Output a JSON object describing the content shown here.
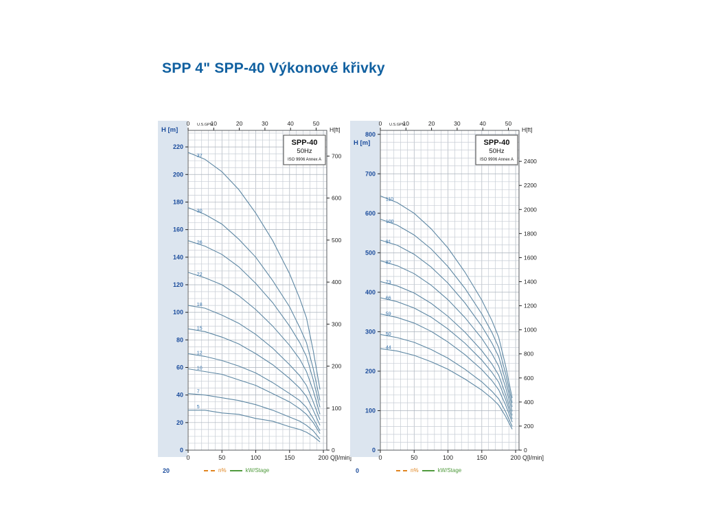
{
  "page": {
    "title": "SPP 4\" SPP-40 Výkonové křivky"
  },
  "colors": {
    "accent_title": "#1060a0",
    "axis_blue": "#1b4c9c",
    "curve": "#5d87a3",
    "curve_label": "#2f6ea8",
    "grid_minor": "#c6ccd4",
    "grid_major": "#a9b1bb",
    "border": "#55585e",
    "strip": "#dce5ef",
    "legend_orange": "#e0841f",
    "legend_green": "#4f9a3c",
    "ink": "#222222"
  },
  "legend": {
    "cut_left": "20",
    "cut_right": "0",
    "items": [
      {
        "label": "n%"
      },
      {
        "label": "kW/Stage"
      }
    ]
  },
  "chart_data": [
    {
      "type": "line",
      "title": "SPP-40",
      "subtitle": "50Hz",
      "standard": "ISO 9906 Annex A",
      "xlabel": "Q[l/min]",
      "ylabel_left": "H [m]",
      "ylabel_right": "H[ft]",
      "top_axis_label": "U.S.GPM",
      "top_ticks": [
        0,
        10,
        20,
        30,
        40,
        50
      ],
      "left_ticks": [
        0,
        20,
        40,
        60,
        80,
        100,
        120,
        140,
        160,
        180,
        200,
        220
      ],
      "right_ticks": [
        0,
        100,
        200,
        300,
        400,
        500,
        600,
        700
      ],
      "bottom_ticks": [
        0,
        50,
        100,
        150,
        200
      ],
      "xlim": [
        0,
        205
      ],
      "ylim": [
        0,
        232
      ],
      "minor_h_step": 5,
      "major_h_step": 20,
      "header_y": 26,
      "label_q": 13,
      "grid": true,
      "x": [
        0,
        25,
        50,
        75,
        100,
        125,
        150,
        165,
        175,
        185,
        195
      ],
      "series": [
        {
          "name": "37",
          "values": [
            216,
            211,
            202,
            189,
            172,
            152,
            128,
            110,
            96,
            72,
            44
          ]
        },
        {
          "name": "30",
          "values": [
            176,
            171,
            164,
            153,
            140,
            123,
            104,
            89,
            78,
            59,
            36
          ]
        },
        {
          "name": "26",
          "values": [
            152,
            148,
            142,
            133,
            121,
            107,
            90,
            78,
            68,
            51,
            31
          ]
        },
        {
          "name": "22",
          "values": [
            129,
            125,
            120,
            112,
            102,
            90,
            76,
            66,
            57,
            43,
            26
          ]
        },
        {
          "name": "18",
          "values": [
            105,
            103,
            98,
            92,
            84,
            74,
            62,
            54,
            47,
            35,
            22
          ]
        },
        {
          "name": "15",
          "values": [
            88,
            86,
            82,
            77,
            70,
            62,
            52,
            45,
            39,
            29,
            18
          ]
        },
        {
          "name": "12",
          "values": [
            70,
            68,
            65,
            61,
            56,
            49,
            41,
            36,
            31,
            23,
            14
          ]
        },
        {
          "name": "10",
          "values": [
            59,
            57,
            55,
            51,
            47,
            41,
            35,
            30,
            26,
            20,
            12
          ]
        },
        {
          "name": "7",
          "values": [
            41,
            40,
            38,
            36,
            33,
            29,
            24,
            21,
            18,
            14,
            8
          ]
        },
        {
          "name": "5",
          "values": [
            29,
            29,
            27,
            26,
            23,
            21,
            17,
            15,
            13,
            10,
            6
          ]
        }
      ]
    },
    {
      "type": "line",
      "title": "SPP-40",
      "subtitle": "50Hz",
      "standard": "ISO 9906 Annex A",
      "xlabel": "Q[l/min]",
      "ylabel_left": "H [m]",
      "ylabel_right": "H[ft]",
      "top_axis_label": "U.S.GPM",
      "top_ticks": [
        0,
        10,
        20,
        30,
        40,
        50
      ],
      "left_ticks": [
        0,
        100,
        200,
        300,
        400,
        500,
        600,
        700,
        800
      ],
      "right_ticks": [
        0,
        200,
        400,
        600,
        800,
        1000,
        1200,
        1400,
        1600,
        1800,
        2000,
        2200,
        2400
      ],
      "bottom_ticks": [
        0,
        50,
        100,
        150,
        200
      ],
      "xlim": [
        0,
        205
      ],
      "ylim": [
        0,
        810
      ],
      "minor_h_step": 20,
      "major_h_step": 100,
      "header_y": 45,
      "label_q": 8,
      "grid": true,
      "x": [
        0,
        25,
        50,
        75,
        100,
        125,
        150,
        165,
        175,
        185,
        195
      ],
      "series": [
        {
          "name": "110",
          "values": [
            644,
            627,
            600,
            561,
            512,
            451,
            380,
            328,
            286,
            215,
            132
          ]
        },
        {
          "name": "100",
          "values": [
            585,
            570,
            545,
            510,
            465,
            410,
            345,
            298,
            260,
            195,
            120
          ]
        },
        {
          "name": "91",
          "values": [
            532,
            519,
            496,
            464,
            423,
            373,
            314,
            271,
            237,
            177,
            109
          ]
        },
        {
          "name": "82",
          "values": [
            480,
            467,
            447,
            418,
            381,
            336,
            283,
            244,
            213,
            160,
            98
          ]
        },
        {
          "name": "73",
          "values": [
            427,
            416,
            398,
            372,
            339,
            299,
            252,
            218,
            190,
            142,
            88
          ]
        },
        {
          "name": "66",
          "values": [
            386,
            376,
            360,
            337,
            307,
            271,
            228,
            197,
            172,
            129,
            79
          ]
        },
        {
          "name": "59",
          "values": [
            345,
            336,
            322,
            301,
            274,
            242,
            204,
            176,
            153,
            115,
            71
          ]
        },
        {
          "name": "50",
          "values": [
            293,
            285,
            273,
            255,
            233,
            205,
            173,
            149,
            130,
            98,
            60
          ]
        },
        {
          "name": "44",
          "values": [
            257,
            251,
            240,
            224,
            205,
            180,
            152,
            131,
            114,
            86,
            53
          ]
        }
      ]
    }
  ]
}
